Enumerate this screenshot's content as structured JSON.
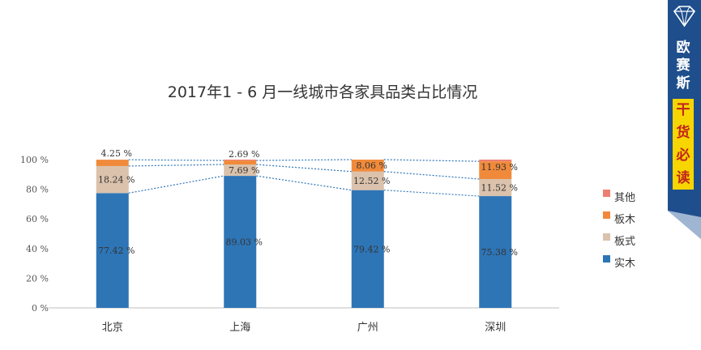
{
  "chart_data": {
    "type": "bar",
    "stacked": true,
    "title": "2017年1 -  6 月一线城市各家具品类占比情况",
    "categories": [
      "北京",
      "上海",
      "广州",
      "深圳"
    ],
    "series": [
      {
        "name": "实木",
        "color": "#2e75b6",
        "values": [
          77.42,
          89.03,
          79.42,
          75.38
        ],
        "labels": [
          "77.42  %",
          "89.03  %",
          "79.42  %",
          "75.38  %"
        ]
      },
      {
        "name": "板式",
        "color": "#dbc2ac",
        "values": [
          18.24,
          7.69,
          12.52,
          11.52
        ],
        "labels": [
          "18.24  %",
          "7.69  %",
          "12.52  %",
          "11.52  %"
        ]
      },
      {
        "name": "板木",
        "color": "#f08a3a",
        "values": [
          4.25,
          2.69,
          8.06,
          11.93
        ],
        "labels": [
          "4.25  %",
          "2.69  %",
          "8.06  %",
          "11.93  %"
        ]
      },
      {
        "name": "其他",
        "color": "#ec7f72",
        "values": [
          0.09,
          0.59,
          0.0,
          1.17
        ]
      }
    ],
    "legend_order": [
      "其他",
      "板木",
      "板式",
      "实木"
    ],
    "yticks": [
      "0 %",
      "20 %",
      "40 %",
      "60 %",
      "80 %",
      "100 %"
    ],
    "ylim": [
      0,
      100
    ],
    "legend": "right",
    "series_lines": "dotted"
  },
  "banner": {
    "top_chars": [
      "欧",
      "赛",
      "斯"
    ],
    "bottom_chars": [
      "干",
      "货",
      "必",
      "读"
    ],
    "icon": "diamond-icon",
    "color": "#1f4e8c"
  }
}
